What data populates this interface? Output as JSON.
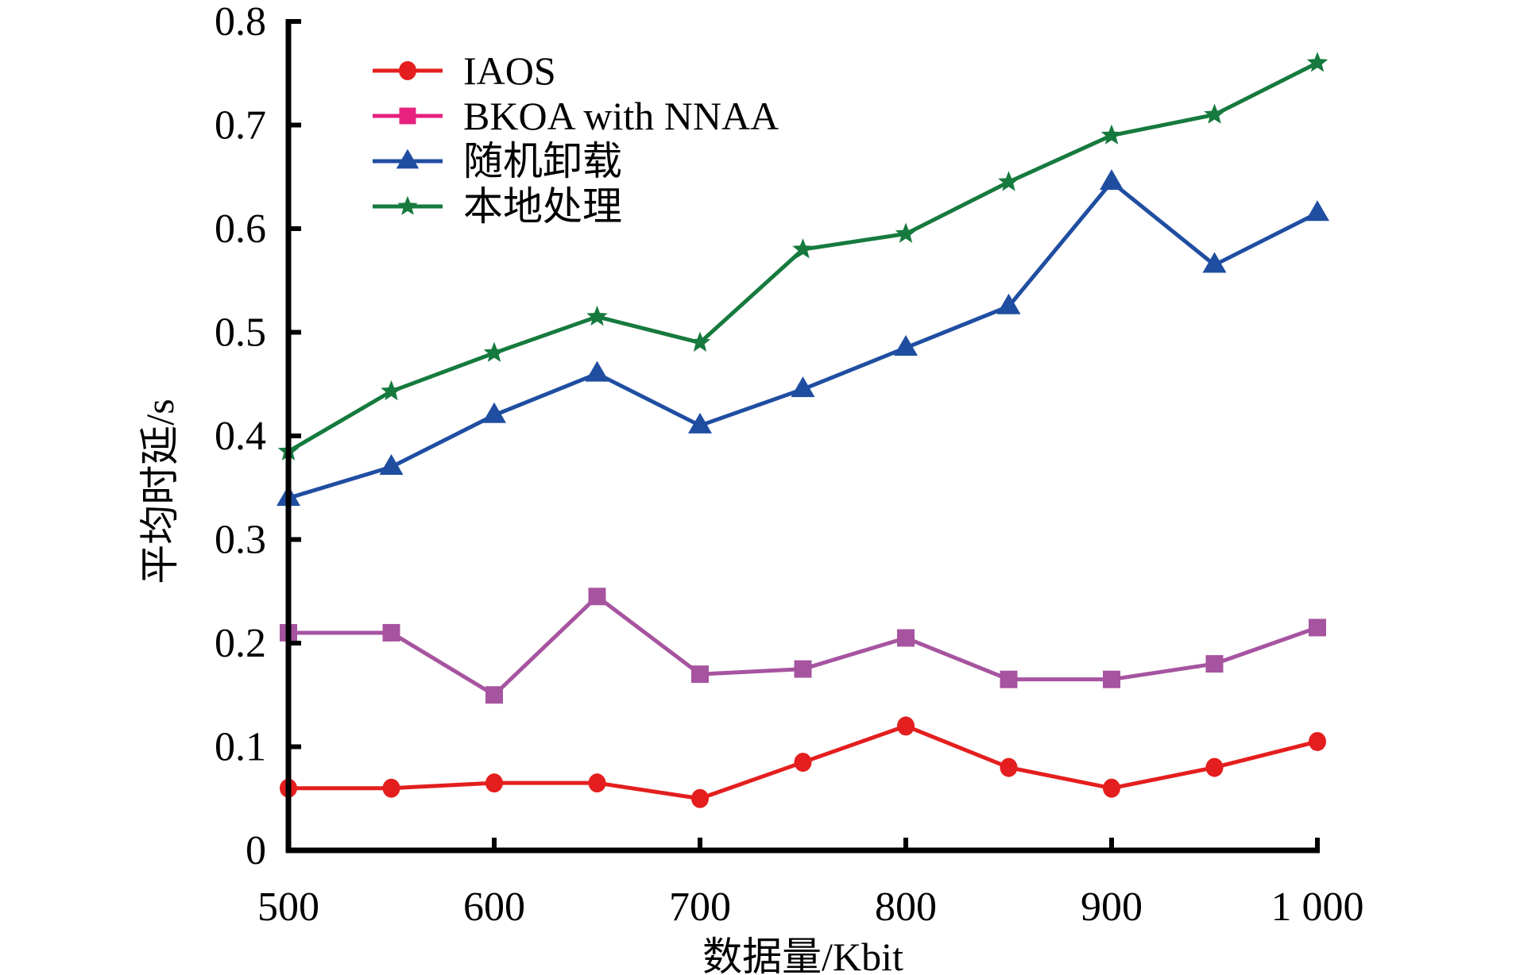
{
  "chart_data": {
    "type": "line",
    "title": "",
    "xlabel": "数据量/Kbit",
    "ylabel": "平均时延/s",
    "x": [
      500,
      550,
      600,
      650,
      700,
      750,
      800,
      850,
      900,
      950,
      1000
    ],
    "xlim": [
      500,
      1000
    ],
    "ylim": [
      0,
      0.8
    ],
    "xticks": [
      500,
      600,
      700,
      800,
      900,
      1000
    ],
    "xtick_labels": [
      "500",
      "600",
      "700",
      "800",
      "900",
      "1 000"
    ],
    "yticks": [
      0,
      0.1,
      0.2,
      0.3,
      0.4,
      0.5,
      0.6,
      0.7,
      0.8
    ],
    "ytick_labels": [
      "0",
      "0.1",
      "0.2",
      "0.3",
      "0.4",
      "0.5",
      "0.6",
      "0.7",
      "0.8"
    ],
    "grid": false,
    "legend_position": "top-left",
    "series": [
      {
        "name": "IAOS",
        "marker": "circle",
        "color": "#e41e1e",
        "legend_color": "#e41e1e",
        "values": [
          0.06,
          0.06,
          0.065,
          0.065,
          0.05,
          0.085,
          0.12,
          0.08,
          0.06,
          0.08,
          0.105
        ]
      },
      {
        "name": "BKOA with NNAA",
        "marker": "square",
        "color": "#a654a0",
        "legend_color": "#e6217f",
        "values": [
          0.21,
          0.21,
          0.15,
          0.245,
          0.17,
          0.175,
          0.205,
          0.165,
          0.165,
          0.18,
          0.215
        ]
      },
      {
        "name": "随机卸载",
        "marker": "triangle",
        "color": "#1f4ea1",
        "legend_color": "#1f4ea1",
        "values": [
          0.34,
          0.37,
          0.42,
          0.46,
          0.41,
          0.445,
          0.485,
          0.525,
          0.645,
          0.565,
          0.615
        ]
      },
      {
        "name": "本地处理",
        "marker": "star",
        "color": "#167a3e",
        "legend_color": "#167a3e",
        "values": [
          0.385,
          0.443,
          0.48,
          0.515,
          0.49,
          0.58,
          0.595,
          0.645,
          0.69,
          0.71,
          0.76
        ]
      }
    ]
  }
}
